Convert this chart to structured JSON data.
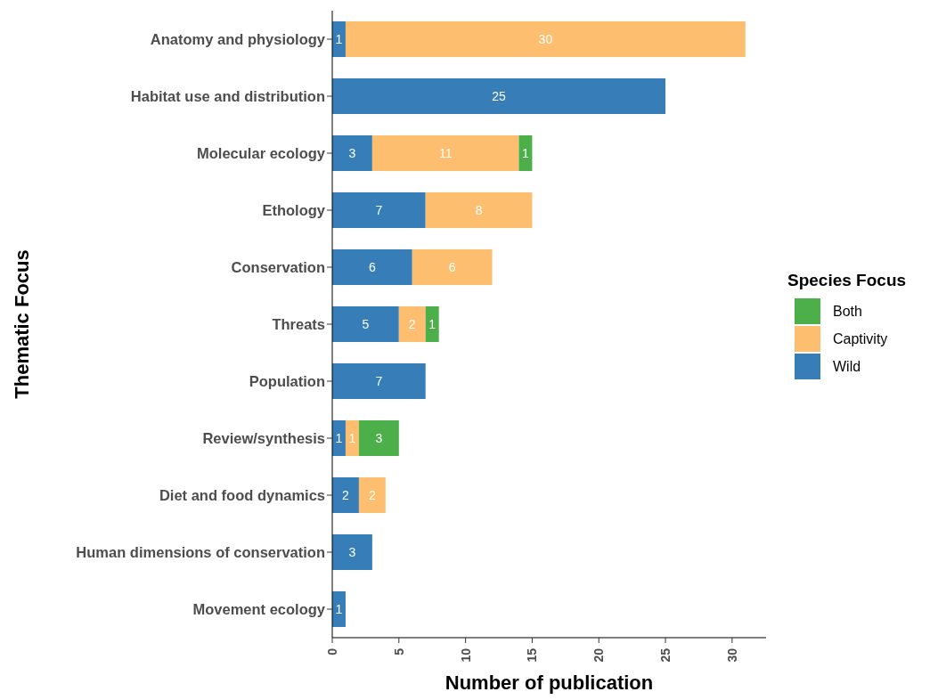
{
  "chart_data": {
    "type": "bar",
    "orientation": "horizontal",
    "stacked": true,
    "xlabel": "Number of publication",
    "ylabel": "Thematic Focus",
    "legend_title": "Species Focus",
    "categories": [
      "Anatomy and physiology",
      "Habitat use and distribution",
      "Molecular ecology",
      "Ethology",
      "Conservation",
      "Threats",
      "Population",
      "Review/synthesis",
      "Diet and food dynamics",
      "Human dimensions of conservation",
      "Movement ecology"
    ],
    "series": [
      {
        "name": "Wild",
        "color": "#377eb8",
        "values": [
          1,
          25,
          3,
          7,
          6,
          5,
          7,
          1,
          2,
          3,
          1
        ]
      },
      {
        "name": "Captivity",
        "color": "#fdbf6f",
        "values": [
          30,
          null,
          11,
          8,
          6,
          2,
          null,
          1,
          2,
          null,
          null
        ]
      },
      {
        "name": "Both",
        "color": "#4daf4a",
        "values": [
          null,
          null,
          1,
          null,
          null,
          1,
          null,
          3,
          null,
          null,
          null
        ]
      }
    ],
    "xlim": [
      0,
      32.55
    ],
    "xticks": [
      0,
      5,
      10,
      15,
      20,
      25,
      30
    ],
    "data_labels": true,
    "grid": false,
    "legend": "right"
  }
}
